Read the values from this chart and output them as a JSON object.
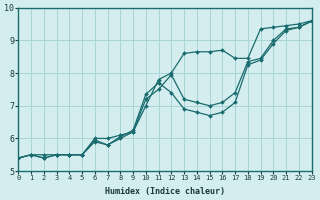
{
  "xlabel": "Humidex (Indice chaleur)",
  "xlim": [
    0,
    23
  ],
  "ylim": [
    5,
    10
  ],
  "yticks": [
    5,
    6,
    7,
    8,
    9,
    10
  ],
  "xticks": [
    0,
    1,
    2,
    3,
    4,
    5,
    6,
    7,
    8,
    9,
    10,
    11,
    12,
    13,
    14,
    15,
    16,
    17,
    18,
    19,
    20,
    21,
    22,
    23
  ],
  "bg_color": "#d4eef0",
  "grid_color": "#aad4d8",
  "line_color": "#1a6b6e",
  "series": [
    {
      "x": [
        0,
        1,
        2,
        3,
        4,
        5,
        6,
        7,
        8,
        9,
        10,
        11,
        12,
        13,
        14,
        15,
        16,
        17,
        18,
        19,
        20,
        21,
        22,
        23
      ],
      "y": [
        5.4,
        5.5,
        5.4,
        5.5,
        5.5,
        5.5,
        6.0,
        6.0,
        6.1,
        6.2,
        7.0,
        7.8,
        8.0,
        8.6,
        8.65,
        8.65,
        8.7,
        8.45,
        8.45,
        9.35,
        9.4,
        9.45,
        9.5,
        9.6
      ]
    },
    {
      "x": [
        0,
        1,
        2,
        3,
        4,
        5,
        6,
        7,
        8,
        9,
        10,
        11,
        12,
        13,
        14,
        15,
        16,
        17,
        18,
        19,
        20,
        21,
        22,
        23
      ],
      "y": [
        5.4,
        5.5,
        5.5,
        5.5,
        5.5,
        5.5,
        5.9,
        5.8,
        6.0,
        6.2,
        7.2,
        7.5,
        7.95,
        7.2,
        7.1,
        7.0,
        7.1,
        7.4,
        8.35,
        8.45,
        9.0,
        9.35,
        9.4,
        9.6
      ]
    },
    {
      "x": [
        0,
        1,
        2,
        3,
        4,
        5,
        6,
        7,
        8,
        9,
        10,
        11,
        12,
        13,
        14,
        15,
        16,
        17,
        18,
        19,
        20,
        21,
        22,
        23
      ],
      "y": [
        5.4,
        5.5,
        5.4,
        5.5,
        5.5,
        5.5,
        5.95,
        5.8,
        6.05,
        6.25,
        7.35,
        7.7,
        7.4,
        6.9,
        6.8,
        6.7,
        6.8,
        7.1,
        8.25,
        8.4,
        8.9,
        9.3,
        9.4,
        9.58
      ]
    }
  ]
}
